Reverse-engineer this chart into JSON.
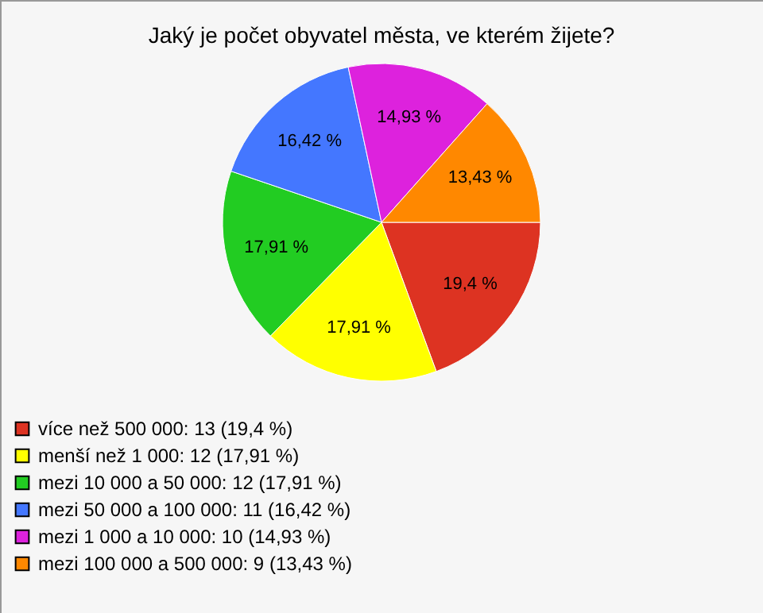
{
  "chart_data": {
    "type": "pie",
    "title": "Jaký je počet obyvatel města, ve kterém žijete?",
    "categories": [
      "více než 500 000: 13 (19,4 %)",
      "menší než 1 000: 12 (17,91 %)",
      "mezi 10 000 a 50 000: 12 (17,91 %)",
      "mezi 50 000 a 100 000: 11 (16,42 %)",
      "mezi 1 000 a 10 000: 10 (14,93 %)",
      "mezi 100 000 a 500 000: 9 (13,43 %)"
    ],
    "values": [
      19.4,
      17.91,
      17.91,
      16.42,
      14.93,
      13.43
    ],
    "value_labels": [
      "19,4 %",
      "17,91 %",
      "17,91 %",
      "16,42 %",
      "14,93 %",
      "13,43 %"
    ],
    "colors": [
      "#dd3322",
      "#ffff00",
      "#22cc22",
      "#4477ff",
      "#dd22dd",
      "#ff8800"
    ],
    "legend": "bottom left"
  }
}
